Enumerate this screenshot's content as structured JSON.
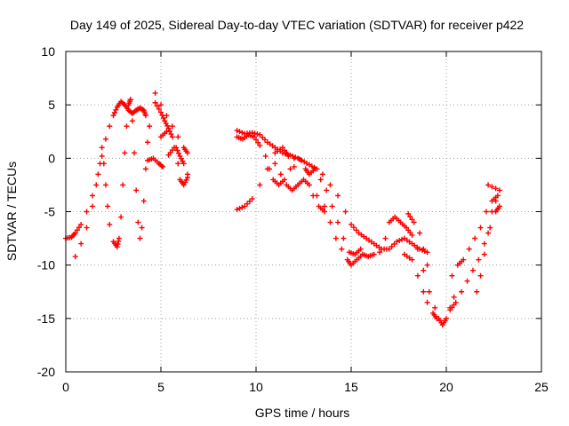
{
  "chart_data": {
    "type": "scatter",
    "title": "Day 149 of 2025, Sidereal Day-to-day VTEC variation (SDTVAR) for receiver p422",
    "xlabel": "GPS time / hours",
    "ylabel": "SDTVAR / TECUs",
    "xlim": [
      0,
      25
    ],
    "ylim": [
      -20,
      10
    ],
    "xticks": [
      0,
      5,
      10,
      15,
      20,
      25
    ],
    "yticks": [
      -20,
      -15,
      -10,
      -5,
      0,
      5,
      10
    ],
    "grid": true,
    "marker": "plus",
    "color": "#ff0000",
    "series": [
      {
        "values": [
          [
            0.0,
            -7.5
          ],
          [
            0.3,
            -7.4
          ],
          [
            0.5,
            -7.0
          ],
          [
            0.8,
            -6.2
          ],
          [
            1.1,
            -5.0
          ],
          [
            1.4,
            -3.5
          ],
          [
            1.7,
            -1.5
          ],
          [
            1.9,
            0.2
          ],
          [
            2.1,
            1.8
          ],
          [
            2.3,
            3.0
          ],
          [
            2.5,
            4.0
          ],
          [
            2.7,
            4.8
          ],
          [
            2.9,
            5.3
          ],
          [
            3.1,
            5.0
          ],
          [
            3.3,
            4.5
          ],
          [
            3.5,
            4.2
          ],
          [
            3.7,
            4.5
          ],
          [
            3.9,
            4.7
          ],
          [
            4.1,
            4.5
          ],
          [
            4.2,
            4.0
          ],
          [
            0.5,
            -9.2
          ],
          [
            0.8,
            -8.0
          ],
          [
            1.1,
            -6.5
          ],
          [
            1.4,
            -4.5
          ],
          [
            1.6,
            -2.5
          ],
          [
            1.8,
            -0.5
          ],
          [
            1.9,
            1.0
          ],
          [
            2.0,
            -0.5
          ],
          [
            2.1,
            -2.5
          ],
          [
            2.2,
            -4.5
          ],
          [
            2.3,
            -6.2
          ],
          [
            2.5,
            -7.8
          ],
          [
            2.7,
            -8.3
          ],
          [
            2.8,
            -7.5
          ],
          [
            2.9,
            -5.5
          ],
          [
            3.0,
            -2.5
          ],
          [
            3.1,
            0.5
          ],
          [
            3.2,
            3.0
          ],
          [
            3.3,
            5.0
          ],
          [
            3.4,
            5.5
          ],
          [
            3.4,
            5.5
          ],
          [
            3.5,
            3.5
          ],
          [
            3.6,
            0.5
          ],
          [
            3.7,
            -3.0
          ],
          [
            3.8,
            -6.0
          ],
          [
            3.9,
            -7.5
          ],
          [
            4.0,
            -6.5
          ],
          [
            4.1,
            -4.0
          ],
          [
            4.2,
            -1.0
          ],
          [
            4.3,
            1.5
          ],
          [
            4.4,
            3.0
          ],
          [
            4.3,
            -0.2
          ],
          [
            4.6,
            0.0
          ],
          [
            4.9,
            -0.5
          ],
          [
            5.1,
            -0.8
          ],
          [
            5.4,
            0.3
          ],
          [
            5.7,
            1.0
          ],
          [
            5.9,
            -0.5
          ],
          [
            6.0,
            -2.0
          ],
          [
            6.2,
            -2.5
          ],
          [
            6.4,
            -1.8
          ],
          [
            4.7,
            6.1
          ],
          [
            5.0,
            5.0
          ],
          [
            5.3,
            4.0
          ],
          [
            5.6,
            3.0
          ],
          [
            5.9,
            2.0
          ],
          [
            6.2,
            1.0
          ],
          [
            6.4,
            0.5
          ],
          [
            4.7,
            5.2
          ],
          [
            5.0,
            4.3
          ],
          [
            5.2,
            3.5
          ],
          [
            5.4,
            2.8
          ],
          [
            5.6,
            2.0
          ],
          [
            5.8,
            1.0
          ],
          [
            6.0,
            0.2
          ],
          [
            6.2,
            -0.5
          ],
          [
            6.4,
            -1.5
          ],
          [
            5.0,
            2.0
          ],
          [
            5.3,
            2.5
          ],
          [
            9.0,
            -4.8
          ],
          [
            9.4,
            -4.5
          ],
          [
            9.8,
            -3.8
          ],
          [
            10.2,
            -2.5
          ],
          [
            10.6,
            -1.0
          ],
          [
            11.0,
            0.5
          ],
          [
            11.4,
            1.0
          ],
          [
            11.7,
            0.2
          ],
          [
            12.0,
            -0.8
          ],
          [
            9.0,
            2.0
          ],
          [
            9.3,
            1.8
          ],
          [
            9.6,
            2.2
          ],
          [
            9.9,
            2.0
          ],
          [
            10.2,
            1.2
          ],
          [
            10.5,
            0.2
          ],
          [
            10.7,
            -1.0
          ],
          [
            10.9,
            -2.0
          ],
          [
            11.2,
            -2.5
          ],
          [
            11.5,
            -2.0
          ],
          [
            11.8,
            -1.0
          ],
          [
            12.0,
            0.0
          ],
          [
            9.0,
            2.6
          ],
          [
            9.4,
            2.3
          ],
          [
            9.8,
            2.4
          ],
          [
            10.2,
            2.2
          ],
          [
            10.6,
            1.5
          ],
          [
            11.0,
            1.0
          ],
          [
            11.4,
            0.5
          ],
          [
            11.8,
            0.3
          ],
          [
            12.2,
            0.0
          ],
          [
            12.4,
            -0.2
          ],
          [
            12.8,
            -0.6
          ],
          [
            13.2,
            -1.0
          ],
          [
            11.0,
            -0.5
          ],
          [
            11.3,
            -1.5
          ],
          [
            11.6,
            -2.5
          ],
          [
            11.9,
            -3.0
          ],
          [
            12.2,
            -2.5
          ],
          [
            12.5,
            -2.0
          ],
          [
            12.8,
            -2.5
          ],
          [
            13.0,
            -3.5
          ],
          [
            13.3,
            -4.5
          ],
          [
            13.6,
            -5.0
          ],
          [
            12.6,
            -1.0
          ],
          [
            12.8,
            -1.5
          ],
          [
            13.1,
            -1.0
          ],
          [
            13.4,
            -2.0
          ],
          [
            13.7,
            -3.0
          ],
          [
            14.0,
            -4.5
          ],
          [
            14.3,
            -6.0
          ],
          [
            14.6,
            -7.5
          ],
          [
            14.9,
            -8.8
          ],
          [
            15.2,
            -9.0
          ],
          [
            15.5,
            -8.5
          ],
          [
            13.2,
            -3.5
          ],
          [
            13.6,
            -4.5
          ],
          [
            13.9,
            -6.0
          ],
          [
            14.2,
            -7.5
          ],
          [
            14.5,
            -8.5
          ],
          [
            14.8,
            -9.5
          ],
          [
            15.0,
            -10.0
          ],
          [
            15.3,
            -9.5
          ],
          [
            15.6,
            -9.0
          ],
          [
            15.9,
            -9.2
          ],
          [
            16.2,
            -9.0
          ],
          [
            13.5,
            -1.5
          ],
          [
            13.9,
            -2.5
          ],
          [
            14.3,
            -3.5
          ],
          [
            14.7,
            -5.0
          ],
          [
            15.0,
            -6.2
          ],
          [
            15.4,
            -7.0
          ],
          [
            15.8,
            -7.5
          ],
          [
            16.2,
            -8.0
          ],
          [
            16.6,
            -8.5
          ],
          [
            17.0,
            -8.5
          ],
          [
            17.4,
            -7.8
          ],
          [
            17.8,
            -7.5
          ],
          [
            18.2,
            -8.0
          ],
          [
            18.6,
            -8.5
          ],
          [
            19.0,
            -8.8
          ],
          [
            16.5,
            -8.8
          ],
          [
            16.8,
            -7.5
          ],
          [
            17.0,
            -6.0
          ],
          [
            17.3,
            -5.5
          ],
          [
            17.6,
            -6.0
          ],
          [
            17.9,
            -6.5
          ],
          [
            18.2,
            -7.2
          ],
          [
            18.5,
            -8.5
          ],
          [
            18.8,
            -10.5
          ],
          [
            19.1,
            -12.5
          ],
          [
            19.4,
            -14.0
          ],
          [
            19.6,
            -15.0
          ],
          [
            19.8,
            -15.6
          ],
          [
            20.0,
            -15.0
          ],
          [
            20.2,
            -14.0
          ],
          [
            20.4,
            -13.0
          ],
          [
            17.8,
            -9.0
          ],
          [
            18.2,
            -9.5
          ],
          [
            18.5,
            -11.0
          ],
          [
            18.8,
            -12.5
          ],
          [
            19.0,
            -13.5
          ],
          [
            19.3,
            -14.5
          ],
          [
            19.5,
            -15.0
          ],
          [
            18.0,
            -5.2
          ],
          [
            18.3,
            -6.0
          ],
          [
            18.6,
            -7.0
          ],
          [
            18.8,
            -8.5
          ],
          [
            19.0,
            -10.0
          ],
          [
            20.2,
            -14.2
          ],
          [
            20.5,
            -13.5
          ],
          [
            20.8,
            -12.5
          ],
          [
            21.1,
            -11.5
          ],
          [
            21.4,
            -10.5
          ],
          [
            21.7,
            -9.5
          ],
          [
            22.0,
            -8.0
          ],
          [
            22.3,
            -6.5
          ],
          [
            22.6,
            -5.0
          ],
          [
            22.8,
            -4.5
          ],
          [
            20.3,
            -11.0
          ],
          [
            20.6,
            -10.0
          ],
          [
            20.9,
            -9.5
          ],
          [
            21.2,
            -8.5
          ],
          [
            21.5,
            -7.5
          ],
          [
            21.8,
            -6.5
          ],
          [
            22.1,
            -5.0
          ],
          [
            22.4,
            -4.0
          ],
          [
            22.7,
            -3.5
          ],
          [
            21.6,
            -12.5
          ],
          [
            21.8,
            -11.0
          ],
          [
            22.0,
            -9.0
          ],
          [
            22.2,
            -7.0
          ],
          [
            22.4,
            -5.0
          ],
          [
            22.6,
            -4.0
          ],
          [
            22.8,
            -3.0
          ],
          [
            22.2,
            -2.5
          ]
        ]
      }
    ]
  }
}
